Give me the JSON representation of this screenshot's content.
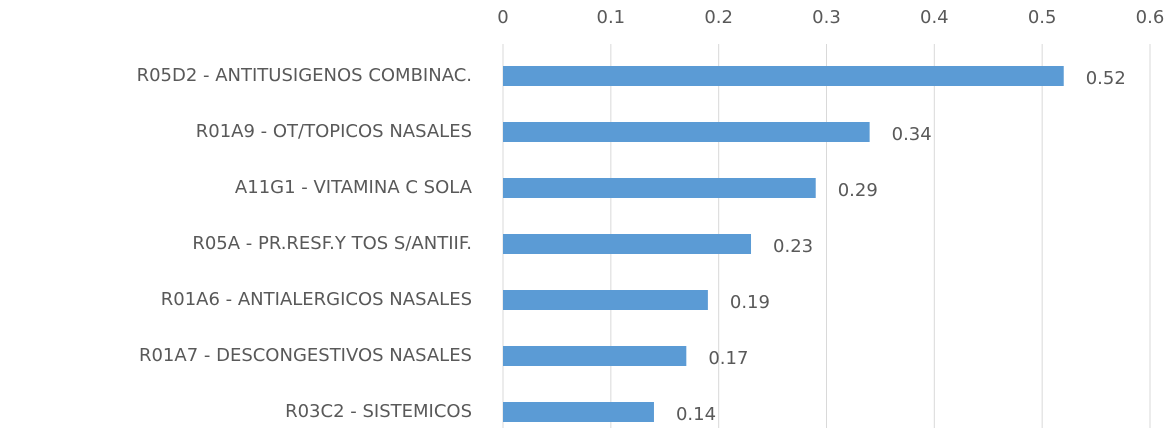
{
  "chart_data": {
    "type": "bar",
    "orientation": "horizontal",
    "categories": [
      "R05D2 - ANTITUSIGENOS COMBINAC.",
      "R01A9 - OT/TOPICOS NASALES",
      "A11G1 - VITAMINA C SOLA",
      "R05A - PR.RESF.Y TOS S/ANTIIF.",
      "R01A6 - ANTIALERGICOS NASALES",
      "R01A7 - DESCONGESTIVOS NASALES",
      "R03C2 - SISTEMICOS"
    ],
    "values": [
      0.52,
      0.34,
      0.29,
      0.23,
      0.19,
      0.17,
      0.14
    ],
    "color": "#5b9bd5",
    "xlim": [
      0,
      0.6
    ],
    "xticks": [
      0,
      0.1,
      0.2,
      0.3,
      0.4,
      0.5,
      0.6
    ],
    "grid": true
  }
}
